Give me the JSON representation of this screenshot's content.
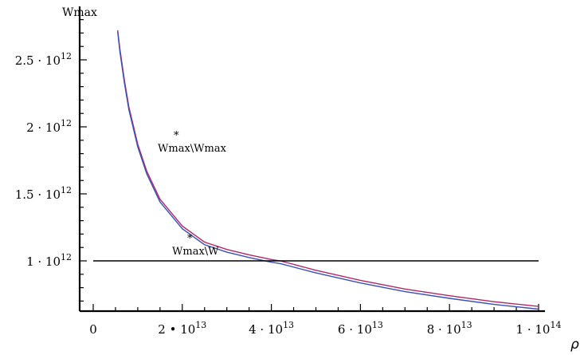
{
  "chart_data": {
    "type": "line",
    "title": "",
    "ylabel": "Wmax",
    "xlabel": "ρ",
    "xlim": [
      -3000000000000.0,
      102000000000000.0
    ],
    "ylim": [
      620000000000.0,
      2820000000000.0
    ],
    "xticks": [
      {
        "value": 0,
        "base": "0",
        "exp": ""
      },
      {
        "value": 20000000000000.0,
        "base": "2 • 10",
        "exp": "13"
      },
      {
        "value": 40000000000000.0,
        "base": "4 · 10",
        "exp": "13"
      },
      {
        "value": 60000000000000.0,
        "base": "6 · 10",
        "exp": "13"
      },
      {
        "value": 80000000000000.0,
        "base": "8 · 10",
        "exp": "13"
      },
      {
        "value": 100000000000000.0,
        "base": "1 · 10",
        "exp": "14"
      }
    ],
    "yticks": [
      {
        "value": 1000000000000.0,
        "base": "1 · 10",
        "exp": "12"
      },
      {
        "value": 1500000000000.0,
        "base": "1.5 · 10",
        "exp": "12"
      },
      {
        "value": 2000000000000.0,
        "base": "2 · 10",
        "exp": "12"
      },
      {
        "value": 2500000000000.0,
        "base": "2.5 · 10",
        "exp": "12"
      }
    ],
    "grid": false,
    "series": [
      {
        "name": "Wmax*\\Wmax",
        "color": "#b0286a",
        "x": [
          5500000000000.0,
          6000000000000.0,
          7000000000000.0,
          8000000000000.0,
          10000000000000.0,
          12000000000000.0,
          15000000000000.0,
          20000000000000.0,
          25000000000000.0,
          30000000000000.0,
          35000000000000.0,
          40000000000000.0,
          42000000000000.0,
          50000000000000.0,
          60000000000000.0,
          70000000000000.0,
          80000000000000.0,
          90000000000000.0,
          100000000000000.0
        ],
        "y": [
          2720000000000.0,
          2580000000000.0,
          2350000000000.0,
          2150000000000.0,
          1870000000000.0,
          1670000000000.0,
          1460000000000.0,
          1260000000000.0,
          1140000000000.0,
          1085000000000.0,
          1045000000000.0,
          1010000000000.0,
          1000000000000.0,
          930000000000.0,
          855000000000.0,
          790000000000.0,
          740000000000.0,
          695000000000.0,
          660000000000.0
        ]
      },
      {
        "name": "Wmax\\W",
        "color": "#3a4fb8",
        "x": [
          5500000000000.0,
          6000000000000.0,
          7000000000000.0,
          8000000000000.0,
          10000000000000.0,
          12000000000000.0,
          15000000000000.0,
          20000000000000.0,
          25000000000000.0,
          30000000000000.0,
          35000000000000.0,
          40000000000000.0,
          42000000000000.0,
          50000000000000.0,
          60000000000000.0,
          70000000000000.0,
          80000000000000.0,
          90000000000000.0,
          100000000000000.0
        ],
        "y": [
          2710000000000.0,
          2560000000000.0,
          2330000000000.0,
          2130000000000.0,
          1850000000000.0,
          1650000000000.0,
          1440000000000.0,
          1240000000000.0,
          1120000000000.0,
          1065000000000.0,
          1025000000000.0,
          990000000000.0,
          980000000000.0,
          910000000000.0,
          835000000000.0,
          770000000000.0,
          720000000000.0,
          675000000000.0,
          640000000000.0
        ]
      },
      {
        "name": "",
        "color": "#000000",
        "x": [
          0,
          100000000000000.0
        ],
        "y": [
          1000000000000.0,
          1000000000000.0
        ]
      }
    ],
    "annotations": [
      {
        "text": "Wmax\\Wmax",
        "star": "*",
        "series": 0
      },
      {
        "text": "Wmax\\W",
        "star": "*",
        "series": 1
      }
    ]
  }
}
